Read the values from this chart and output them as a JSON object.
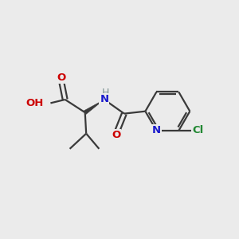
{
  "background_color": "#ebebeb",
  "bond_color": "#3a3a3a",
  "atom_colors": {
    "O": "#cc0000",
    "N": "#1a1acc",
    "Cl": "#228833",
    "gray": "#7a9090",
    "C": "#3a3a3a"
  },
  "figsize": [
    3.0,
    3.0
  ],
  "dpi": 100
}
